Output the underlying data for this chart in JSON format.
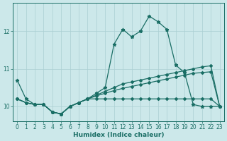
{
  "xlabel": "Humidex (Indice chaleur)",
  "xlim": [
    -0.5,
    23.5
  ],
  "ylim": [
    9.6,
    12.75
  ],
  "background_color": "#cce8ea",
  "grid_color": "#aacfd2",
  "line_color": "#1a6e65",
  "x": [
    0,
    1,
    2,
    3,
    4,
    5,
    6,
    7,
    8,
    9,
    10,
    11,
    12,
    13,
    14,
    15,
    16,
    17,
    18,
    19,
    20,
    21,
    22,
    23
  ],
  "line_main": [
    10.7,
    10.2,
    10.05,
    10.05,
    9.85,
    9.8,
    10.0,
    10.1,
    10.2,
    10.35,
    10.5,
    11.65,
    12.05,
    11.85,
    12.0,
    12.4,
    12.25,
    12.05,
    11.1,
    10.9,
    10.05,
    10.0,
    10.0,
    10.0
  ],
  "line_upper": [
    10.2,
    10.1,
    10.05,
    10.05,
    9.85,
    9.8,
    10.0,
    10.1,
    10.2,
    10.3,
    10.4,
    10.5,
    10.6,
    10.65,
    10.7,
    10.75,
    10.8,
    10.85,
    10.9,
    10.95,
    11.0,
    11.05,
    11.08,
    10.0
  ],
  "line_mid": [
    10.2,
    10.1,
    10.05,
    10.05,
    9.85,
    9.8,
    10.0,
    10.1,
    10.2,
    10.28,
    10.35,
    10.42,
    10.48,
    10.53,
    10.58,
    10.63,
    10.68,
    10.73,
    10.78,
    10.83,
    10.88,
    10.9,
    10.92,
    10.0
  ],
  "line_flat": [
    10.2,
    10.1,
    10.05,
    10.05,
    9.85,
    9.8,
    10.0,
    10.1,
    10.2,
    10.2,
    10.2,
    10.2,
    10.2,
    10.2,
    10.2,
    10.2,
    10.2,
    10.2,
    10.2,
    10.2,
    10.2,
    10.2,
    10.2,
    10.0
  ],
  "yticks": [
    10,
    11,
    12
  ],
  "xticks": [
    0,
    1,
    2,
    3,
    4,
    5,
    6,
    7,
    8,
    9,
    10,
    11,
    12,
    13,
    14,
    15,
    16,
    17,
    18,
    19,
    20,
    21,
    22,
    23
  ]
}
